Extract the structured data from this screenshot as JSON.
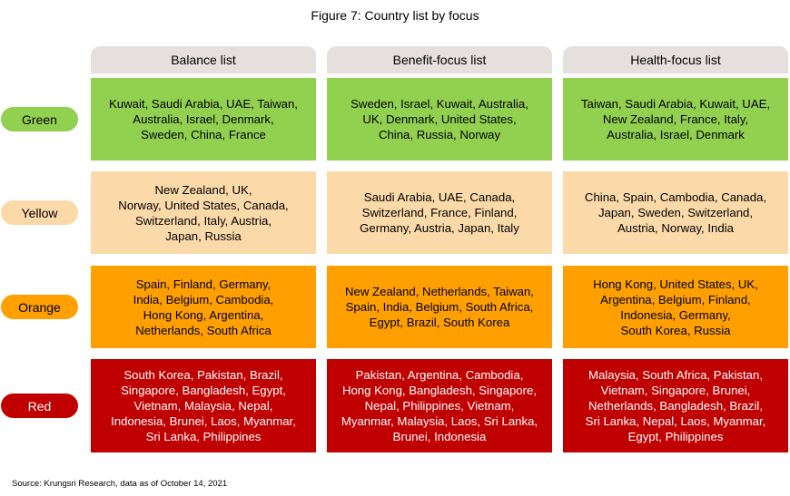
{
  "title": "Figure 7: Country list by focus",
  "source": "Source: Krungsri Research, data as of October 14, 2021",
  "colors": {
    "header_bg": "#e5e0de",
    "green": "#92d050",
    "yellow": "#fcd9a8",
    "orange": "#ffa000",
    "red": "#c00000"
  },
  "chart_data": {
    "type": "table",
    "columns": [
      "Balance list",
      "Benefit-focus list",
      "Health-focus list"
    ],
    "rows": [
      {
        "label": "Green",
        "cells": [
          [
            "Kuwait, Saudi Arabia, UAE, Taiwan,",
            "Australia, Israel, Denmark,",
            "Sweden, China, France"
          ],
          [
            "Sweden, Israel, Kuwait, Australia,",
            "UK, Denmark, United States,",
            "China, Russia, Norway"
          ],
          [
            "Taiwan, Saudi Arabia, Kuwait, UAE,",
            "New Zealand, France, Italy,",
            "Australia, Israel, Denmark"
          ]
        ]
      },
      {
        "label": "Yellow",
        "cells": [
          [
            "New Zealand, UK,",
            "Norway, United States, Canada,",
            "Switzerland, Italy, Austria,",
            "Japan, Russia"
          ],
          [
            "Saudi Arabia, UAE, Canada,",
            "Switzerland, France, Finland,",
            "Germany, Austria, Japan, Italy"
          ],
          [
            "China, Spain, Cambodia, Canada,",
            "Japan, Sweden, Switzerland,",
            "Austria, Norway, India"
          ]
        ]
      },
      {
        "label": "Orange",
        "cells": [
          [
            "Spain, Finland, Germany,",
            "India, Belgium, Cambodia,",
            "Hong Kong, Argentina,",
            "Netherlands, South Africa"
          ],
          [
            "New Zealand, Netherlands, Taiwan,",
            "Spain, India, Belgium, South Africa,",
            "Egypt, Brazil, South Korea"
          ],
          [
            "Hong Kong, United States, UK,",
            "Argentina, Belgium, Finland,",
            "Indonesia, Germany,",
            "South Korea, Russia"
          ]
        ]
      },
      {
        "label": "Red",
        "cells": [
          [
            "South Korea, Pakistan, Brazil,",
            "Singapore, Bangladesh, Egypt,",
            "Vietnam, Malaysia, Nepal,",
            "Indonesia, Brunei, Laos, Myanmar,",
            "Sri Lanka, Philippines"
          ],
          [
            "Pakistan, Argentina, Cambodia,",
            "Hong Kong, Bangladesh, Singapore,",
            "Nepal, Philippines, Vietnam,",
            "Myanmar, Malaysia, Laos, Sri Lanka,",
            "Brunei, Indonesia"
          ],
          [
            "Malaysia, South Africa, Pakistan,",
            "Vietnam, Singapore, Brunei,",
            "Netherlands, Bangladesh, Brazil,",
            "Sri Lanka, Nepal, Laos, Myanmar,",
            "Egypt, Philippines"
          ]
        ]
      }
    ]
  }
}
